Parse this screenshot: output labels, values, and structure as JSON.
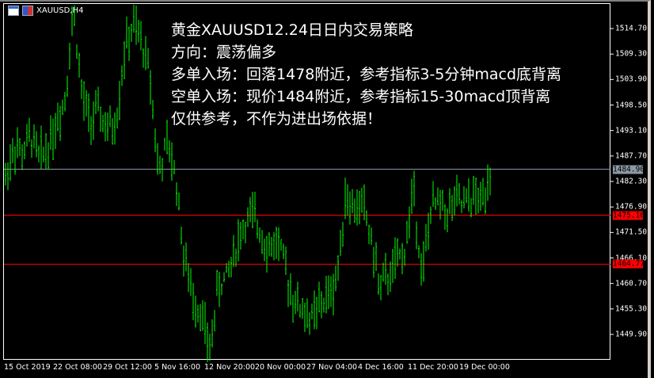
{
  "window": {
    "title": "XAUUSD,H4",
    "icons": [
      "chart-window-icon",
      "save-template-icon"
    ]
  },
  "note": {
    "lines": [
      "黄金XAUUSD12.24日日内交易策略",
      "方向：震荡偏多",
      "多单入场：回落1478附近，参考指标3-5分钟macd底背离",
      "空单入场：现价1484附近，参考指标15-30macd顶背离",
      "仅供参考，不作为进出场依据！"
    ]
  },
  "price_axis": {
    "ticks": [
      "1514.70",
      "1509.30",
      "1503.90",
      "1498.50",
      "1493.10",
      "1487.70",
      "1482.30",
      "1476.90",
      "1471.50",
      "1466.10",
      "1460.70",
      "1455.30",
      "1449.90"
    ]
  },
  "levels": [
    {
      "label": "1484.90",
      "color": "#8c9aa6",
      "kind": "bid"
    },
    {
      "label": "1475.16",
      "color": "#ff0000",
      "kind": "line"
    },
    {
      "label": "1464.77",
      "color": "#ff0000",
      "kind": "line"
    }
  ],
  "time_axis": {
    "ticks": [
      "15 Oct 2019",
      "22 Oct 08:00",
      "29 Oct 12:00",
      "5 Nov 16:00",
      "12 Nov 20:00",
      "20 Nov 00:00",
      "27 Nov 04:00",
      "4 Dec 16:00",
      "11 Dec 20:00",
      "19 Dec 00:00"
    ]
  },
  "colors": {
    "bars": "#00ff00",
    "background": "#000000",
    "foreground": "#ffffff"
  },
  "price_path": [
    1483,
    1490,
    1488,
    1492,
    1487,
    1490,
    1495,
    1500,
    1519,
    1500,
    1495,
    1497,
    1493,
    1495,
    1510,
    1515,
    1512,
    1505,
    1484,
    1490,
    1484,
    1466,
    1458,
    1455,
    1446,
    1460,
    1462,
    1468,
    1473,
    1475,
    1472,
    1468,
    1470,
    1463,
    1457,
    1455,
    1453,
    1456,
    1458,
    1462,
    1480,
    1476,
    1478,
    1470,
    1460,
    1462,
    1465,
    1468,
    1481,
    1462,
    1476,
    1478,
    1476,
    1478,
    1477,
    1479,
    1478,
    1485
  ]
}
